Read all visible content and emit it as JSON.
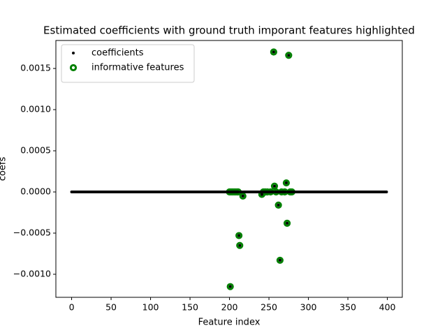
{
  "chart_data": {
    "type": "scatter",
    "title": "Estimated coefficients with ground truth imporant features highlighted",
    "xlabel": "Feature index",
    "ylabel": "coefs",
    "xlim": [
      -19.95,
      418.95
    ],
    "ylim": [
      -0.00128,
      0.00184
    ],
    "xticks": [
      0,
      50,
      100,
      150,
      200,
      250,
      300,
      350,
      400
    ],
    "yticks": [
      {
        "value": -0.001,
        "label": "−0.0010"
      },
      {
        "value": -0.0005,
        "label": "−0.0005"
      },
      {
        "value": 0,
        "label": "0.0000"
      },
      {
        "value": 0.0005,
        "label": "0.0005"
      },
      {
        "value": 0.001,
        "label": "0.0010"
      },
      {
        "value": 0.0015,
        "label": "0.0015"
      }
    ],
    "legend": "upper left",
    "series": [
      {
        "name": "coefficients",
        "color": "#000000",
        "marker": "dot",
        "x": [
          0,
          1,
          2,
          3,
          4,
          5,
          6,
          7,
          8,
          9,
          10,
          11,
          12,
          13,
          14,
          15,
          16,
          17,
          18,
          19,
          20,
          21,
          22,
          23,
          24,
          25,
          26,
          27,
          28,
          29,
          30,
          31,
          32,
          33,
          34,
          35,
          36,
          37,
          38,
          39,
          40,
          41,
          42,
          43,
          44,
          45,
          46,
          47,
          48,
          49,
          50,
          51,
          52,
          53,
          54,
          55,
          56,
          57,
          58,
          59,
          60,
          61,
          62,
          63,
          64,
          65,
          66,
          67,
          68,
          69,
          70,
          71,
          72,
          73,
          74,
          75,
          76,
          77,
          78,
          79,
          80,
          81,
          82,
          83,
          84,
          85,
          86,
          87,
          88,
          89,
          90,
          91,
          92,
          93,
          94,
          95,
          96,
          97,
          98,
          99,
          100,
          101,
          102,
          103,
          104,
          105,
          106,
          107,
          108,
          109,
          110,
          111,
          112,
          113,
          114,
          115,
          116,
          117,
          118,
          119,
          120,
          121,
          122,
          123,
          124,
          125,
          126,
          127,
          128,
          129,
          130,
          131,
          132,
          133,
          134,
          135,
          136,
          137,
          138,
          139,
          140,
          141,
          142,
          143,
          144,
          145,
          146,
          147,
          148,
          149,
          150,
          151,
          152,
          153,
          154,
          155,
          156,
          157,
          158,
          159,
          160,
          161,
          162,
          163,
          164,
          165,
          166,
          167,
          168,
          169,
          170,
          171,
          172,
          173,
          174,
          175,
          176,
          177,
          178,
          179,
          180,
          181,
          182,
          183,
          184,
          185,
          186,
          187,
          188,
          189,
          190,
          191,
          192,
          193,
          194,
          195,
          196,
          197,
          198,
          199,
          200,
          201,
          202,
          203,
          204,
          205,
          206,
          207,
          208,
          209,
          210,
          211,
          212,
          213,
          214,
          215,
          216,
          217,
          218,
          219,
          220,
          221,
          222,
          223,
          224,
          225,
          226,
          227,
          228,
          229,
          230,
          231,
          232,
          233,
          234,
          235,
          236,
          237,
          238,
          239,
          240,
          241,
          242,
          243,
          244,
          245,
          246,
          247,
          248,
          249,
          250,
          251,
          252,
          253,
          254,
          255,
          256,
          257,
          258,
          259,
          260,
          261,
          262,
          263,
          264,
          265,
          266,
          267,
          268,
          269,
          270,
          271,
          272,
          273,
          274,
          275,
          276,
          277,
          278,
          279,
          280,
          281,
          282,
          283,
          284,
          285,
          286,
          287,
          288,
          289,
          290,
          291,
          292,
          293,
          294,
          295,
          296,
          297,
          298,
          299,
          300,
          301,
          302,
          303,
          304,
          305,
          306,
          307,
          308,
          309,
          310,
          311,
          312,
          313,
          314,
          315,
          316,
          317,
          318,
          319,
          320,
          321,
          322,
          323,
          324,
          325,
          326,
          327,
          328,
          329,
          330,
          331,
          332,
          333,
          334,
          335,
          336,
          337,
          338,
          339,
          340,
          341,
          342,
          343,
          344,
          345,
          346,
          347,
          348,
          349,
          350,
          351,
          352,
          353,
          354,
          355,
          356,
          357,
          358,
          359,
          360,
          361,
          362,
          363,
          364,
          365,
          366,
          367,
          368,
          369,
          370,
          371,
          372,
          373,
          374,
          375,
          376,
          377,
          378,
          379,
          380,
          381,
          382,
          383,
          384,
          385,
          386,
          387,
          388,
          389,
          390,
          391,
          392,
          393,
          394,
          395,
          396,
          397,
          398,
          399
        ],
        "values": [
          0,
          0,
          0,
          0,
          0,
          0,
          0,
          0,
          0,
          0,
          0,
          0,
          0,
          0,
          0,
          0,
          0,
          0,
          0,
          0,
          0,
          0,
          0,
          0,
          0,
          0,
          0,
          0,
          0,
          0,
          0,
          0,
          0,
          0,
          0,
          0,
          0,
          0,
          0,
          0,
          0,
          0,
          0,
          0,
          0,
          0,
          0,
          0,
          0,
          0,
          0,
          0,
          0,
          0,
          0,
          0,
          0,
          0,
          0,
          0,
          0,
          0,
          0,
          0,
          0,
          0,
          0,
          0,
          0,
          0,
          0,
          0,
          0,
          0,
          0,
          0,
          0,
          0,
          0,
          0,
          0,
          0,
          0,
          0,
          0,
          0,
          0,
          0,
          0,
          0,
          0,
          0,
          0,
          0,
          0,
          0,
          0,
          0,
          0,
          0,
          0,
          0,
          0,
          0,
          0,
          0,
          0,
          0,
          0,
          0,
          0,
          0,
          0,
          0,
          0,
          0,
          0,
          0,
          0,
          0,
          0,
          0,
          0,
          0,
          0,
          0,
          0,
          0,
          0,
          0,
          0,
          0,
          0,
          0,
          0,
          0,
          0,
          0,
          0,
          0,
          0,
          0,
          0,
          0,
          0,
          0,
          0,
          0,
          0,
          0,
          0,
          0,
          0,
          0,
          0,
          0,
          0,
          0,
          0,
          0,
          0,
          0,
          0,
          0,
          0,
          0,
          0,
          0,
          0,
          0,
          0,
          0,
          0,
          0,
          0,
          0,
          0,
          0,
          0,
          0,
          0,
          0,
          0,
          0,
          0,
          0,
          0,
          0,
          0,
          0,
          0,
          0,
          0,
          0,
          0,
          0,
          0,
          0,
          0,
          0,
          0,
          -0.00115,
          0,
          0,
          0,
          0,
          0,
          0,
          0,
          0,
          0,
          0,
          -0.00053,
          -0.00065,
          0,
          0,
          0,
          -5e-05,
          0,
          0,
          0,
          0,
          0,
          0,
          0,
          0,
          0,
          0,
          0,
          0,
          0,
          0,
          0,
          0,
          0,
          0,
          0,
          0,
          0,
          0,
          0,
          -3e-05,
          0,
          0,
          0,
          0,
          0,
          0,
          0,
          0,
          0,
          0,
          0,
          0,
          0,
          0,
          0.0017,
          7e-05,
          0,
          0,
          0,
          0,
          -0.00016,
          0,
          -0.00083,
          0,
          0,
          0,
          0,
          0,
          0,
          0,
          0.00011,
          -0.00038,
          0,
          0.00166,
          0,
          0,
          0,
          0,
          0,
          0,
          0,
          0,
          0,
          0,
          0,
          0,
          0,
          0,
          0,
          0,
          0,
          0,
          0,
          0,
          0,
          0,
          0,
          0,
          0,
          0,
          0,
          0,
          0,
          0,
          0,
          0,
          0,
          0,
          0,
          0,
          0,
          0,
          0,
          0,
          0,
          0,
          0,
          0,
          0,
          0,
          0,
          0,
          0,
          0,
          0,
          0,
          0,
          0,
          0,
          0,
          0,
          0,
          0,
          0,
          0,
          0,
          0,
          0,
          0,
          0,
          0,
          0,
          0,
          0,
          0,
          0,
          0,
          0,
          0,
          0,
          0,
          0,
          0,
          0,
          0,
          0,
          0,
          0,
          0,
          0,
          0,
          0,
          0,
          0,
          0,
          0,
          0,
          0,
          0,
          0,
          0,
          0,
          0,
          0,
          0,
          0,
          0,
          0,
          0,
          0,
          0,
          0,
          0,
          0,
          0,
          0,
          0,
          0,
          0,
          0,
          0,
          0,
          0,
          0,
          0,
          0,
          0,
          0
        ]
      },
      {
        "name": "informative features",
        "color": "#008000",
        "marker": "ring",
        "x": [
          200,
          201,
          202,
          204,
          206,
          208,
          210,
          211,
          212,
          213,
          217,
          241,
          243,
          245,
          248,
          252,
          256,
          257,
          259,
          262,
          264,
          266,
          270,
          272,
          273,
          275,
          277,
          279
        ],
        "values": [
          0,
          -0.00115,
          0,
          0,
          0,
          0,
          0,
          0,
          -0.00053,
          -0.00065,
          -5e-05,
          -3e-05,
          0,
          0,
          0,
          0,
          0.0017,
          7e-05,
          0,
          -0.00016,
          -0.00083,
          0,
          0,
          0.00011,
          -0.00038,
          0.00166,
          0,
          0
        ]
      }
    ]
  }
}
